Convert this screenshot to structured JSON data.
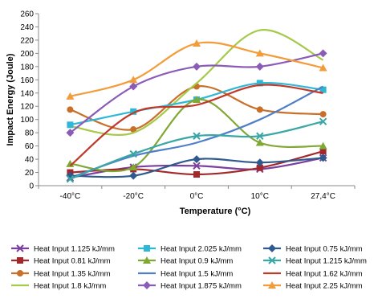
{
  "chart_data": {
    "type": "line",
    "title": "",
    "xlabel": "Temperature (°C)",
    "ylabel": "Impact Energy (Joule)",
    "categories": [
      "-40°C",
      "-20°C",
      "0°C",
      "10°C",
      "27,4°C"
    ],
    "ylim": [
      0,
      260
    ],
    "yticks": [
      0,
      20,
      40,
      60,
      80,
      100,
      120,
      140,
      160,
      180,
      200,
      220,
      240,
      260
    ],
    "grid": false,
    "legend_position": "bottom",
    "series": [
      {
        "name": "Heat Input 1.125 kJ/mm",
        "color": "#7b3f9e",
        "marker": "x",
        "values": [
          12,
          28,
          30,
          25,
          42
        ]
      },
      {
        "name": "Heat Input 0.81 kJ/mm",
        "color": "#a3282c",
        "marker": "square",
        "values": [
          20,
          25,
          17,
          27,
          52
        ]
      },
      {
        "name": "Heat Input 1.35 kJ/mm",
        "color": "#c8702a",
        "marker": "circle",
        "values": [
          115,
          85,
          150,
          115,
          108
        ]
      },
      {
        "name": "Heat Input 1.8 kJ/mm",
        "color": "#a6c94a",
        "marker": "none",
        "values": [
          90,
          80,
          155,
          235,
          190
        ]
      },
      {
        "name": "Heat Input 2.025 kJ/mm",
        "color": "#2eb8d6",
        "marker": "square",
        "values": [
          92,
          112,
          130,
          155,
          145
        ]
      },
      {
        "name": "Heat Input 0.9 kJ/mm",
        "color": "#7fa834",
        "marker": "triangle",
        "values": [
          33,
          28,
          130,
          65,
          60
        ]
      },
      {
        "name": "Heat Input 1.5 kJ/mm",
        "color": "#4f7fc8",
        "marker": "none",
        "values": [
          12,
          45,
          65,
          100,
          150
        ]
      },
      {
        "name": "Heat Input 1.875 kJ/mm",
        "color": "#8a5cb8",
        "marker": "diamond",
        "values": [
          80,
          150,
          180,
          180,
          200
        ]
      },
      {
        "name": "Heat Input 0.75 kJ/mm",
        "color": "#2e5a8e",
        "marker": "diamond",
        "values": [
          15,
          15,
          40,
          35,
          42
        ]
      },
      {
        "name": "Heat Input 1.215 kJ/mm",
        "color": "#3aa6a6",
        "marker": "x",
        "values": [
          10,
          48,
          75,
          75,
          97
        ]
      },
      {
        "name": "Heat Input 1.62 kJ/mm",
        "color": "#c0392b",
        "marker": "none",
        "values": [
          30,
          110,
          122,
          152,
          140
        ]
      },
      {
        "name": "Heat Input 2.25 kJ/mm",
        "color": "#f39c3a",
        "marker": "triangle",
        "values": [
          135,
          160,
          215,
          200,
          178
        ]
      }
    ]
  }
}
